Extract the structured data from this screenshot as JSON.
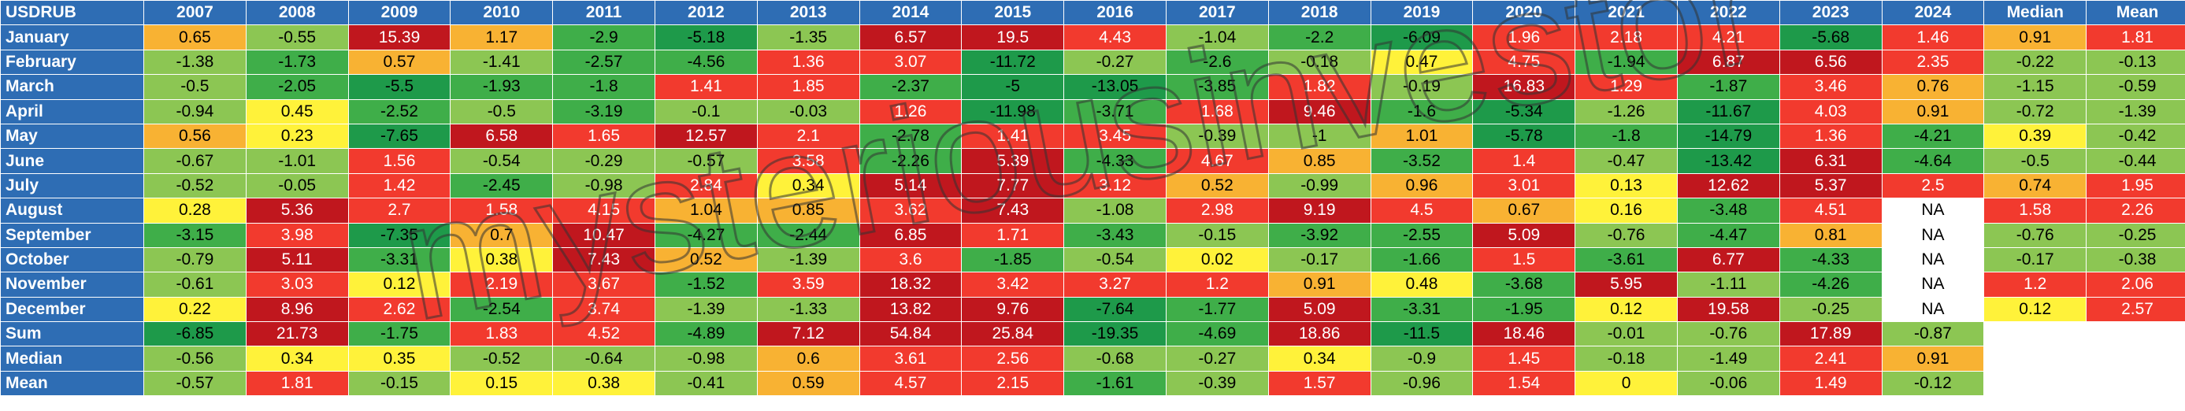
{
  "chart_data": {
    "type": "table",
    "corner_label": "USDRUB",
    "years": [
      "2007",
      "2008",
      "2009",
      "2010",
      "2011",
      "2012",
      "2013",
      "2014",
      "2015",
      "2016",
      "2017",
      "2018",
      "2019",
      "2020",
      "2021",
      "2022",
      "2023",
      "2024"
    ],
    "summary_columns": [
      "Median",
      "Mean"
    ],
    "rows": [
      {
        "label": "January",
        "values": [
          "0.65",
          "-0.55",
          "15.39",
          "1.17",
          "-2.9",
          "-5.18",
          "-1.35",
          "6.57",
          "19.5",
          "4.43",
          "-1.04",
          "-2.2",
          "-6.09",
          "1.96",
          "2.18",
          "4.21",
          "-5.68",
          "1.46"
        ],
        "summary": [
          "0.91",
          "1.81"
        ]
      },
      {
        "label": "February",
        "values": [
          "-1.38",
          "-1.73",
          "0.57",
          "-1.41",
          "-2.57",
          "-4.56",
          "1.36",
          "3.07",
          "-11.72",
          "-0.27",
          "-2.6",
          "-0.18",
          "0.47",
          "4.75",
          "-1.94",
          "6.87",
          "6.56",
          "2.35"
        ],
        "summary": [
          "-0.22",
          "-0.13"
        ]
      },
      {
        "label": "March",
        "values": [
          "-0.5",
          "-2.05",
          "-5.5",
          "-1.93",
          "-1.8",
          "1.41",
          "1.85",
          "-2.37",
          "-5",
          "-13.05",
          "-3.85",
          "1.82",
          "-0.19",
          "16.83",
          "1.29",
          "-1.87",
          "3.46",
          "0.76"
        ],
        "summary": [
          "-1.15",
          "-0.59"
        ]
      },
      {
        "label": "April",
        "values": [
          "-0.94",
          "0.45",
          "-2.52",
          "-0.5",
          "-3.19",
          "-0.1",
          "-0.03",
          "1.26",
          "-11.98",
          "-3.71",
          "1.68",
          "9.46",
          "-1.6",
          "-5.34",
          "-1.26",
          "-11.67",
          "4.03",
          "0.91"
        ],
        "summary": [
          "-0.72",
          "-1.39"
        ]
      },
      {
        "label": "May",
        "values": [
          "0.56",
          "0.23",
          "-7.65",
          "6.58",
          "1.65",
          "12.57",
          "2.1",
          "-2.78",
          "1.41",
          "3.45",
          "-0.39",
          "-1",
          "1.01",
          "-5.78",
          "-1.8",
          "-14.79",
          "1.36",
          "-4.21"
        ],
        "summary": [
          "0.39",
          "-0.42"
        ]
      },
      {
        "label": "June",
        "values": [
          "-0.67",
          "-1.01",
          "1.56",
          "-0.54",
          "-0.29",
          "-0.57",
          "3.58",
          "-2.26",
          "5.39",
          "-4.33",
          "4.67",
          "0.85",
          "-3.52",
          "1.4",
          "-0.47",
          "-13.42",
          "6.31",
          "-4.64"
        ],
        "summary": [
          "-0.5",
          "-0.44"
        ]
      },
      {
        "label": "July",
        "values": [
          "-0.52",
          "-0.05",
          "1.42",
          "-2.45",
          "-0.98",
          "2.84",
          "0.34",
          "5.14",
          "7.77",
          "3.12",
          "0.52",
          "-0.99",
          "0.96",
          "3.01",
          "0.13",
          "12.62",
          "5.37",
          "2.5"
        ],
        "summary": [
          "0.74",
          "1.95"
        ]
      },
      {
        "label": "August",
        "values": [
          "0.28",
          "5.36",
          "2.7",
          "1.58",
          "4.15",
          "1.04",
          "0.85",
          "3.62",
          "7.43",
          "-1.08",
          "2.98",
          "9.19",
          "4.5",
          "0.67",
          "0.16",
          "-3.48",
          "4.51",
          "NA"
        ],
        "summary": [
          "1.58",
          "2.26"
        ]
      },
      {
        "label": "September",
        "values": [
          "-3.15",
          "3.98",
          "-7.35",
          "0.7",
          "10.47",
          "-4.27",
          "-2.44",
          "6.85",
          "1.71",
          "-3.43",
          "-0.15",
          "-3.92",
          "-2.55",
          "5.09",
          "-0.76",
          "-4.47",
          "0.81",
          "NA"
        ],
        "summary": [
          "-0.76",
          "-0.25"
        ]
      },
      {
        "label": "October",
        "values": [
          "-0.79",
          "5.11",
          "-3.31",
          "0.38",
          "7.43",
          "0.52",
          "-1.39",
          "3.6",
          "-1.85",
          "-0.54",
          "0.02",
          "-0.17",
          "-1.66",
          "1.5",
          "-3.61",
          "6.77",
          "-4.33",
          "NA"
        ],
        "summary": [
          "-0.17",
          "-0.38"
        ]
      },
      {
        "label": "November",
        "values": [
          "-0.61",
          "3.03",
          "0.12",
          "2.19",
          "3.67",
          "-1.52",
          "3.59",
          "18.32",
          "3.42",
          "3.27",
          "1.2",
          "0.91",
          "0.48",
          "-3.68",
          "5.95",
          "-1.11",
          "-4.26",
          "NA"
        ],
        "summary": [
          "1.2",
          "2.06"
        ]
      },
      {
        "label": "December",
        "values": [
          "0.22",
          "8.96",
          "2.62",
          "-2.54",
          "3.74",
          "-1.39",
          "-1.33",
          "13.82",
          "9.76",
          "-7.64",
          "-1.77",
          "5.09",
          "-3.31",
          "-1.95",
          "0.12",
          "19.58",
          "-0.25",
          "NA"
        ],
        "summary": [
          "0.12",
          "2.57"
        ]
      },
      {
        "label": "Sum",
        "values": [
          "-6.85",
          "21.73",
          "-1.75",
          "1.83",
          "4.52",
          "-4.89",
          "7.12",
          "54.84",
          "25.84",
          "-19.35",
          "-4.69",
          "18.86",
          "-11.5",
          "18.46",
          "-0.01",
          "-0.76",
          "17.89",
          "-0.87"
        ],
        "summary": [
          "",
          ""
        ]
      },
      {
        "label": "Median",
        "values": [
          "-0.56",
          "0.34",
          "0.35",
          "-0.52",
          "-0.64",
          "-0.98",
          "0.6",
          "3.61",
          "2.56",
          "-0.68",
          "-0.27",
          "0.34",
          "-0.9",
          "1.45",
          "-0.18",
          "-1.49",
          "2.41",
          "0.91"
        ],
        "summary": [
          "",
          ""
        ]
      },
      {
        "label": "Mean",
        "values": [
          "-0.57",
          "1.81",
          "-0.15",
          "0.15",
          "0.38",
          "-0.41",
          "0.59",
          "4.57",
          "2.15",
          "-1.61",
          "-0.39",
          "1.57",
          "-0.96",
          "1.54",
          "0",
          "-0.06",
          "1.49",
          "-0.12"
        ],
        "summary": [
          "",
          ""
        ]
      }
    ],
    "watermark": "mysteriousinvestor",
    "colors": {
      "header_bg": "#2e6db4",
      "dark_red": "#c0171e",
      "red": "#f23a2e",
      "orange": "#f8b233",
      "yellow": "#fff23a",
      "light_green": "#8cc653",
      "green": "#3fae49",
      "dark_green": "#1e9a4a"
    }
  }
}
